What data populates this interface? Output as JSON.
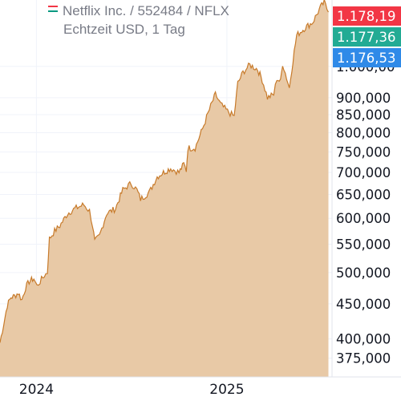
{
  "legend": {
    "line1": "Netflix Inc. / 552484 / NFLX",
    "line2": "Echtzeit USD, 1 Tag"
  },
  "colors": {
    "area_fill": "#e8c9a6",
    "line": "#c77a2a",
    "badge_red": "#f23645",
    "badge_green": "#22ab94",
    "badge_blue": "#2f8ae8",
    "grid": "#f0f3fa",
    "axis_text": "#131722"
  },
  "price_badges": [
    {
      "label": "1.178,19",
      "value": 1178.19,
      "color": "#f23645"
    },
    {
      "label": "1.177,36",
      "value": 1177.36,
      "color": "#22ab94"
    },
    {
      "label": "1.176,53",
      "value": 1176.53,
      "color": "#2f8ae8"
    }
  ],
  "chart_data": {
    "type": "area",
    "scale": "log",
    "ylim": [
      352,
      1250
    ],
    "y_ticks": [
      {
        "label": "1.000,00",
        "value": 1000
      },
      {
        "label": "900,000",
        "value": 900
      },
      {
        "label": "850,000",
        "value": 850
      },
      {
        "label": "800,000",
        "value": 800
      },
      {
        "label": "750,000",
        "value": 750
      },
      {
        "label": "700,000",
        "value": 700
      },
      {
        "label": "650,000",
        "value": 650
      },
      {
        "label": "600,000",
        "value": 600
      },
      {
        "label": "550,000",
        "value": 550
      },
      {
        "label": "500,000",
        "value": 500
      },
      {
        "label": "450,000",
        "value": 450
      },
      {
        "label": "400,000",
        "value": 400
      },
      {
        "label": "375,000",
        "value": 375
      }
    ],
    "x_ticks": [
      {
        "label": "2024",
        "date": "2024-01-01"
      },
      {
        "label": "2025",
        "date": "2025-01-01"
      }
    ],
    "xlim": [
      "2023-10-23",
      "2025-07-22"
    ],
    "series": [
      {
        "x": [
          "2023-10-23",
          "2023-10-30",
          "2023-11-06",
          "2023-11-13",
          "2023-11-20",
          "2023-11-27",
          "2023-12-04",
          "2023-12-11",
          "2023-12-18",
          "2023-12-27",
          "2024-01-02",
          "2024-01-08",
          "2024-01-16",
          "2024-01-22",
          "2024-01-26",
          "2024-02-05",
          "2024-02-15",
          "2024-03-01",
          "2024-03-15",
          "2024-04-01",
          "2024-04-12",
          "2024-04-18",
          "2024-04-22",
          "2024-05-01",
          "2024-05-15",
          "2024-06-01",
          "2024-06-15",
          "2024-07-01",
          "2024-07-12",
          "2024-07-19",
          "2024-08-05",
          "2024-08-20",
          "2024-09-01",
          "2024-09-15",
          "2024-10-01",
          "2024-10-10",
          "2024-10-15",
          "2024-10-18",
          "2024-11-01",
          "2024-11-15",
          "2024-12-01",
          "2024-12-10",
          "2024-12-20",
          "2025-01-02",
          "2025-01-15",
          "2025-01-22",
          "2025-02-01",
          "2025-02-14",
          "2025-03-01",
          "2025-03-10",
          "2025-03-20",
          "2025-04-01",
          "2025-04-07",
          "2025-04-14",
          "2025-04-18",
          "2025-05-01",
          "2025-05-15",
          "2025-06-01",
          "2025-06-15",
          "2025-06-30",
          "2025-07-07",
          "2025-07-15"
        ],
        "y": [
          395,
          420,
          448,
          460,
          462,
          467,
          456,
          475,
          485,
          490,
          478,
          485,
          495,
          500,
          560,
          575,
          585,
          610,
          620,
          628,
          615,
          585,
          555,
          565,
          610,
          620,
          660,
          675,
          660,
          640,
          655,
          690,
          700,
          710,
          700,
          720,
          705,
          760,
          760,
          810,
          875,
          910,
          880,
          860,
          845,
          945,
          980,
          1005,
          990,
          955,
          900,
          910,
          960,
          950,
          1010,
          930,
          1110,
          1140,
          1160,
          1220,
          1240,
          1200
        ]
      }
    ]
  }
}
